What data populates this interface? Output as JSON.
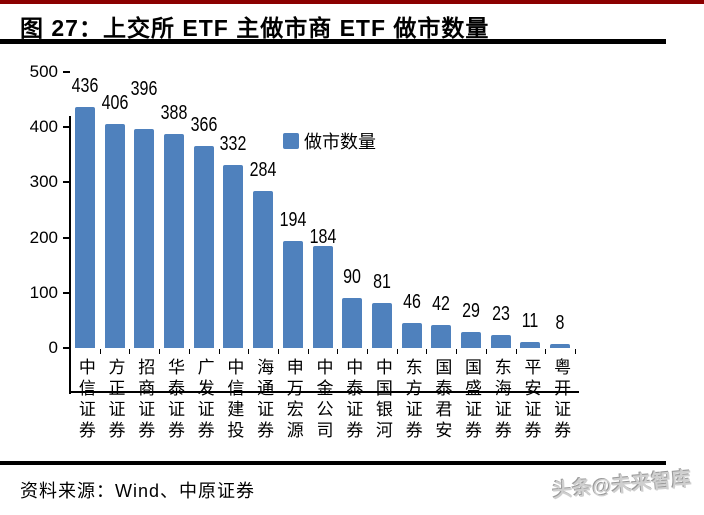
{
  "page": {
    "title": "图 27：上交所 ETF 主做市商 ETF 做市数量",
    "source": "资料来源：Wind、中原证券",
    "watermark": "头条@未来智库"
  },
  "colors": {
    "accent_bar": "#4f81bd",
    "top_border": "#8b0000",
    "rule": "#000000",
    "watermark_gray": "#cfcfcf"
  },
  "chart_data": {
    "type": "bar",
    "title": "上交所 ETF 主做市商 ETF 做市数量",
    "legend": [
      "做市数量"
    ],
    "legend_position": "top-center",
    "categories": [
      "中信证券",
      "方正证券",
      "招商证券",
      "华泰证券",
      "广发证券",
      "中信建投",
      "海通证券",
      "申万宏源",
      "中金公司",
      "中泰证券",
      "中国银河",
      "东方证券",
      "国泰君安",
      "国盛证券",
      "东海证券",
      "平安证券",
      "粤开证券"
    ],
    "values": [
      436,
      406,
      396,
      388,
      366,
      332,
      284,
      194,
      184,
      90,
      81,
      46,
      42,
      29,
      23,
      11,
      8
    ],
    "data_labels": true,
    "xlabel": "",
    "ylabel": "",
    "ylim": [
      0,
      500
    ],
    "yticks": [
      0,
      100,
      200,
      300,
      400,
      500
    ],
    "grid": false,
    "bar_color": "#4f81bd"
  }
}
